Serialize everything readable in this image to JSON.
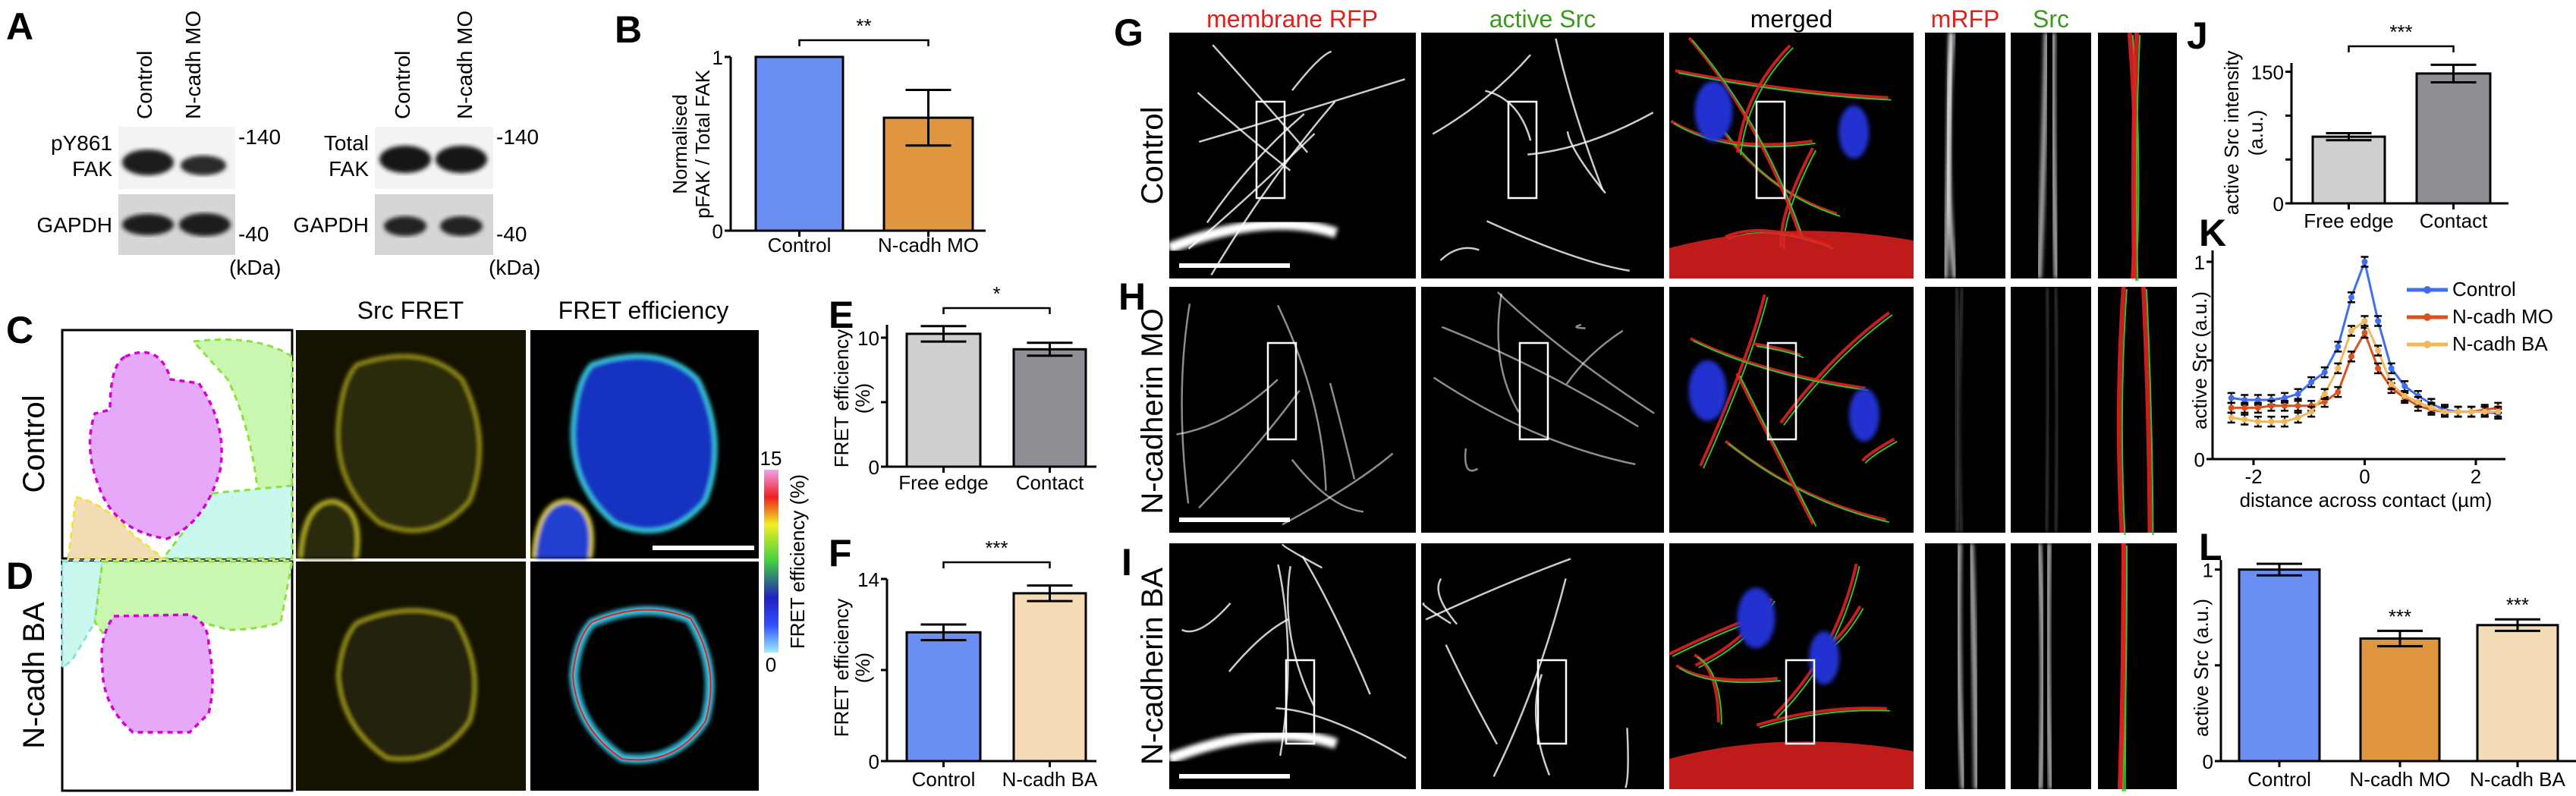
{
  "panel_labels": [
    "A",
    "B",
    "C",
    "D",
    "E",
    "F",
    "G",
    "H",
    "I",
    "J",
    "K",
    "L"
  ],
  "blots": {
    "lanes": [
      "Control",
      "N-cadh MO"
    ],
    "left": {
      "label_line1": "pY861",
      "label_line2": "FAK",
      "marker_top": "-140",
      "loading": "GAPDH",
      "marker_bottom": "-40",
      "unit": "(kDa)"
    },
    "right": {
      "label_line1": "Total",
      "label_line2": "FAK",
      "marker_top": "-140",
      "loading": "GAPDH",
      "marker_bottom": "-40",
      "unit": "(kDa)"
    }
  },
  "fret_panels": {
    "col_headers": [
      "Src FRET",
      "FRET efficiency"
    ],
    "rows": [
      "Control",
      "N-cadh BA"
    ],
    "colorbar": {
      "max": "15",
      "min": "0",
      "label": "FRET efficiency (%)"
    },
    "mask_colors": {
      "cell": "#e6a8f8",
      "outline": "#d400d4",
      "neighbor1": "#c9f7b0",
      "neighbor2": "#c8f8ee",
      "neighbor3": "#f2dcb4"
    }
  },
  "src_panels": {
    "col_headers": [
      {
        "text": "membrane RFP",
        "color": "#e0201c"
      },
      {
        "text": "active Src",
        "color": "#3a9a1a"
      },
      {
        "text": "merged",
        "color": "#000000"
      },
      {
        "text": "mRFP",
        "color": "#e0201c"
      },
      {
        "text": "Src",
        "color": "#3a9a1a"
      }
    ],
    "rows": [
      "Control",
      "N-cadherin MO",
      "N-cadherin BA"
    ]
  },
  "chart_data": [
    {
      "id": "B",
      "type": "bar",
      "categories": [
        "Control",
        "N-cadh MO"
      ],
      "values": [
        1.0,
        0.65
      ],
      "errors": [
        0,
        0.16
      ],
      "colors": [
        "#6a8ef2",
        "#e0963e"
      ],
      "ylabel_lines": [
        "Normalised",
        "pFAK / Total FAK"
      ],
      "ylim": [
        0,
        1
      ],
      "yticks": [
        0,
        1
      ],
      "ytick_labels": [
        "0",
        "1"
      ],
      "significance": "**",
      "grid": false
    },
    {
      "id": "E",
      "type": "bar",
      "categories": [
        "Free edge",
        "Contact"
      ],
      "values": [
        10.3,
        9.1
      ],
      "errors": [
        0.6,
        0.5
      ],
      "colors": [
        "#cfcfcf",
        "#8f8e94"
      ],
      "ylabel_lines": [
        "FRET efficiency",
        "(%)"
      ],
      "ylim": [
        0,
        11
      ],
      "yticks": [
        0,
        5,
        10
      ],
      "ytick_labels": [
        "0",
        "",
        "10"
      ],
      "significance": "*",
      "grid": false
    },
    {
      "id": "F",
      "type": "bar",
      "categories": [
        "Control",
        "N-cadh BA"
      ],
      "values": [
        9.9,
        12.9
      ],
      "errors": [
        0.6,
        0.6
      ],
      "colors": [
        "#6a8ef2",
        "#f2dbb5"
      ],
      "ylabel_lines": [
        "FRET efficiency",
        "(%)"
      ],
      "ylim": [
        0,
        14
      ],
      "yticks": [
        0,
        7,
        14
      ],
      "ytick_labels": [
        "0",
        "",
        "14"
      ],
      "significance": "***",
      "grid": false
    },
    {
      "id": "J",
      "type": "bar",
      "categories": [
        "Free edge",
        "Contact"
      ],
      "values": [
        76,
        148
      ],
      "errors": [
        4,
        10
      ],
      "colors": [
        "#cfcfcf",
        "#8f8e94"
      ],
      "ylabel_lines": [
        "active Src intensity",
        "(a.u.)"
      ],
      "ylim": [
        0,
        160
      ],
      "yticks": [
        0,
        50,
        100,
        150
      ],
      "ytick_labels": [
        "0",
        "",
        "",
        "150"
      ],
      "significance": "***",
      "grid": false
    },
    {
      "id": "K",
      "type": "line",
      "xlabel": "distance across contact (µm)",
      "ylabel": "active Src (a.u.)",
      "xlim": [
        -2.5,
        2.5
      ],
      "ylim": [
        0,
        1.05
      ],
      "xticks": [
        -2,
        0,
        2
      ],
      "xtick_labels": [
        "-2",
        "0",
        "2"
      ],
      "yticks": [
        0,
        0.5,
        1
      ],
      "ytick_labels": [
        "0",
        "",
        "1"
      ],
      "legend": "top-right",
      "grid": false,
      "x": [
        -2.4,
        -2.16,
        -1.92,
        -1.68,
        -1.44,
        -1.2,
        -0.96,
        -0.72,
        -0.48,
        -0.24,
        0,
        0.24,
        0.48,
        0.72,
        0.96,
        1.2,
        1.44,
        1.68,
        1.92,
        2.16,
        2.4
      ],
      "series": [
        {
          "name": "Control",
          "color": "#3f6ff0",
          "values": [
            0.31,
            0.3,
            0.3,
            0.3,
            0.31,
            0.33,
            0.39,
            0.44,
            0.57,
            0.82,
            1.0,
            0.7,
            0.46,
            0.37,
            0.32,
            0.28,
            0.25,
            0.24,
            0.24,
            0.24,
            0.23
          ]
        },
        {
          "name": "N-cadh MO",
          "color": "#d9531e",
          "values": [
            0.26,
            0.26,
            0.26,
            0.27,
            0.27,
            0.27,
            0.27,
            0.29,
            0.34,
            0.52,
            0.64,
            0.46,
            0.36,
            0.31,
            0.27,
            0.25,
            0.24,
            0.24,
            0.24,
            0.25,
            0.26
          ]
        },
        {
          "name": "N-cadh BA",
          "color": "#eeb85e",
          "values": [
            0.21,
            0.2,
            0.19,
            0.19,
            0.19,
            0.21,
            0.24,
            0.33,
            0.46,
            0.65,
            0.7,
            0.55,
            0.38,
            0.32,
            0.29,
            0.26,
            0.24,
            0.24,
            0.24,
            0.24,
            0.24
          ]
        }
      ]
    },
    {
      "id": "L",
      "type": "bar",
      "categories": [
        "Control",
        "N-cadh MO",
        "N-cadh BA"
      ],
      "values": [
        1.0,
        0.64,
        0.71
      ],
      "errors": [
        0.03,
        0.04,
        0.03
      ],
      "colors": [
        "#6a8ef2",
        "#e0963e",
        "#f2dbb5"
      ],
      "ylabel_lines": [
        "active Src (a.u.)"
      ],
      "ylim": [
        0,
        1.05
      ],
      "yticks": [
        0,
        0.5,
        1
      ],
      "ytick_labels": [
        "0",
        "",
        "1"
      ],
      "bar_annotations": [
        "",
        "***",
        "***"
      ],
      "grid": false
    }
  ]
}
